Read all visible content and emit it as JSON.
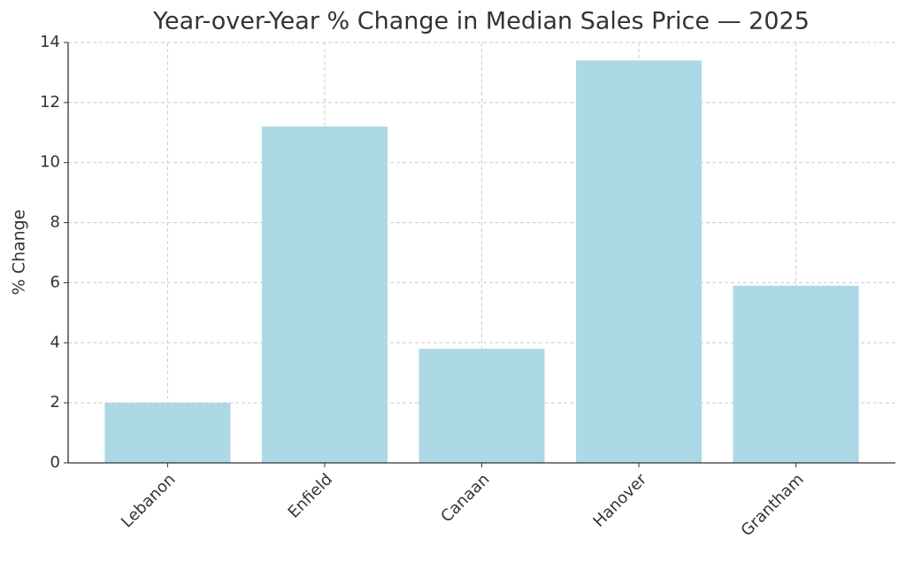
{
  "chart_data": {
    "type": "bar",
    "title": "Year-over-Year % Change in Median Sales Price — 2025",
    "y_label": "% Change",
    "categories": [
      "Lebanon",
      "Enfield",
      "Canaan",
      "Hanover",
      "Grantham"
    ],
    "values": [
      2.0,
      11.2,
      3.8,
      13.4,
      5.9
    ],
    "color": "#add8e6",
    "ylim": [
      0,
      14
    ],
    "yticks": [
      0,
      2,
      4,
      6,
      8,
      10,
      12,
      14
    ],
    "grid": true
  }
}
